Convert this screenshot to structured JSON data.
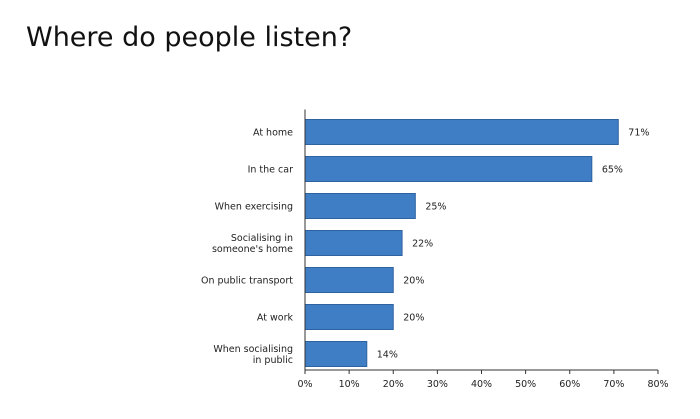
{
  "chart_data": {
    "type": "bar",
    "orientation": "horizontal",
    "title": "Where do people listen?",
    "categories": [
      [
        "At home"
      ],
      [
        "In the car"
      ],
      [
        "When exercising"
      ],
      [
        "Socialising in",
        "someone's home"
      ],
      [
        "On public transport"
      ],
      [
        "At work"
      ],
      [
        "When socialising",
        "in public"
      ]
    ],
    "values": [
      71,
      65,
      25,
      22,
      20,
      20,
      14
    ],
    "value_labels": [
      "71%",
      "65%",
      "25%",
      "22%",
      "20%",
      "20%",
      "14%"
    ],
    "xlim": [
      0,
      80
    ],
    "x_ticks": [
      0,
      10,
      20,
      30,
      40,
      50,
      60,
      70,
      80
    ],
    "x_tick_labels": [
      "0%",
      "10%",
      "20%",
      "30%",
      "40%",
      "50%",
      "60%",
      "70%",
      "80%"
    ],
    "xlabel": "",
    "ylabel": "",
    "grid": false,
    "legend": "none",
    "colors": {
      "bar_fill": "#3f7ec4",
      "bar_stroke": "#2e62a0"
    }
  }
}
